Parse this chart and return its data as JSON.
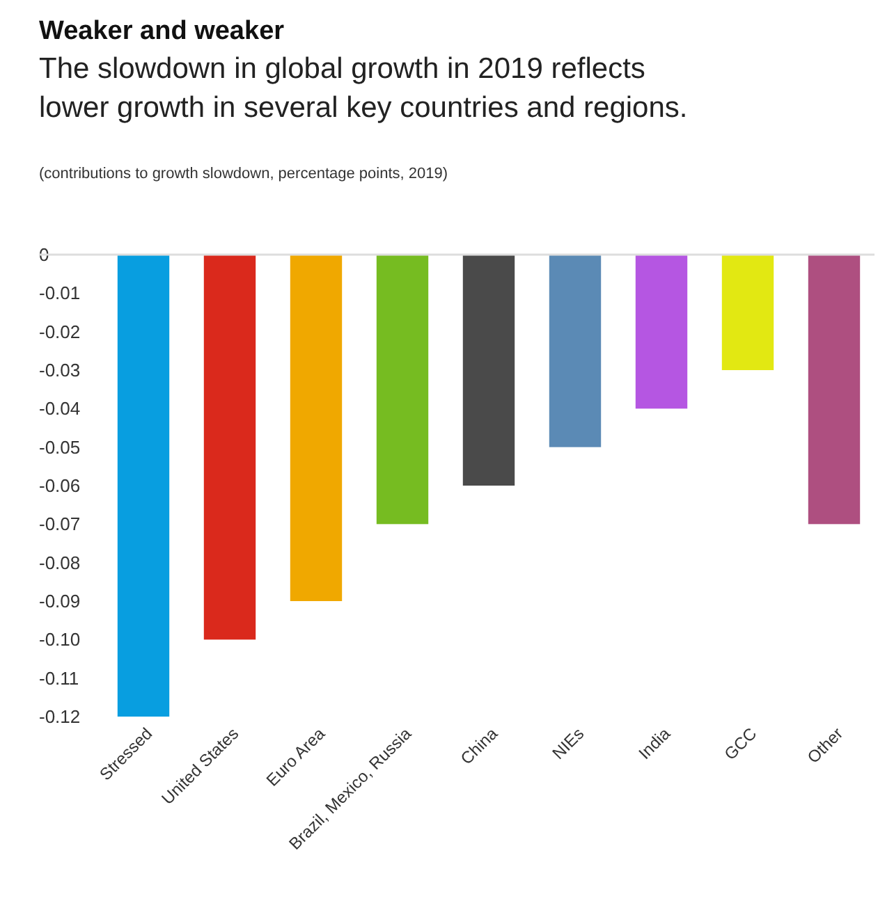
{
  "chart_data": {
    "type": "bar",
    "title": "Weaker and weaker",
    "subtitle": "The slowdown in global growth in 2019 reflects lower growth in several key countries and regions.",
    "annotations": [
      "(contributions to growth slowdown, percentage points, 2019)"
    ],
    "categories": [
      "Stressed",
      "United States",
      "Euro Area",
      "Brazil, Mexico, Russia",
      "China",
      "NIEs",
      "India",
      "GCC",
      "Other"
    ],
    "values": [
      -0.12,
      -0.1,
      -0.09,
      -0.07,
      -0.06,
      -0.05,
      -0.04,
      -0.03,
      -0.07
    ],
    "colors": [
      "#089ee0",
      "#da291c",
      "#f0a800",
      "#76bc21",
      "#4a4a4a",
      "#5b8ab5",
      "#b556e2",
      "#e2e812",
      "#ae4f80"
    ],
    "ylim": [
      -0.12,
      0
    ],
    "yticks": [
      0,
      {
        "value": -0.01,
        "label": "-0.01"
      },
      {
        "value": -0.02,
        "label": "-0.02"
      },
      {
        "value": -0.03,
        "label": "-0.03"
      },
      {
        "value": -0.04,
        "label": "-0.04"
      },
      {
        "value": -0.05,
        "label": "-0.05"
      },
      {
        "value": -0.06,
        "label": "-0.06"
      },
      {
        "value": -0.07,
        "label": "-0.07"
      },
      {
        "value": -0.08,
        "label": "-0.08"
      },
      {
        "value": -0.09,
        "label": "-0.09"
      },
      {
        "value": -0.1,
        "label": "-0.10"
      },
      {
        "value": -0.11,
        "label": "-0.11"
      },
      {
        "value": -0.12,
        "label": "-0.12"
      }
    ],
    "grid": false
  }
}
